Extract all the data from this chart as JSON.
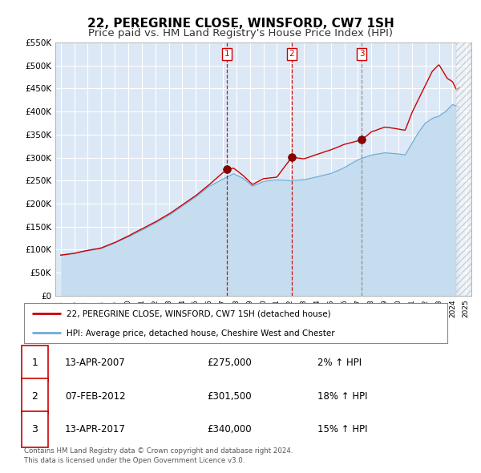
{
  "title": "22, PEREGRINE CLOSE, WINSFORD, CW7 1SH",
  "subtitle": "Price paid vs. HM Land Registry's House Price Index (HPI)",
  "ylim": [
    0,
    550000
  ],
  "yticks": [
    0,
    50000,
    100000,
    150000,
    200000,
    250000,
    300000,
    350000,
    400000,
    450000,
    500000,
    550000
  ],
  "ytick_labels": [
    "£0",
    "£50K",
    "£100K",
    "£150K",
    "£200K",
    "£250K",
    "£300K",
    "£350K",
    "£400K",
    "£450K",
    "£500K",
    "£550K"
  ],
  "xlim_start": 1994.6,
  "xlim_end": 2025.4,
  "bg_color": "#dce8f5",
  "grid_color": "#ffffff",
  "sale_color": "#cc0000",
  "hpi_color": "#6baed6",
  "hpi_fill_color": "#c6dcef",
  "marker_color": "#8b0000",
  "transactions": [
    {
      "label": "1",
      "date_str": "13-APR-2007",
      "date_x": 2007.28,
      "price": 275000,
      "pct": "2%",
      "arrow": "↑",
      "vline_color": "#cc0000",
      "vline_style": "--"
    },
    {
      "label": "2",
      "date_str": "07-FEB-2012",
      "date_x": 2012.1,
      "price": 301500,
      "pct": "18%",
      "arrow": "↑",
      "vline_color": "#cc0000",
      "vline_style": "--"
    },
    {
      "label": "3",
      "date_str": "13-APR-2017",
      "date_x": 2017.28,
      "price": 340000,
      "pct": "15%",
      "arrow": "↑",
      "vline_color": "#888888",
      "vline_style": "--"
    }
  ],
  "legend_sale_label": "22, PEREGRINE CLOSE, WINSFORD, CW7 1SH (detached house)",
  "legend_hpi_label": "HPI: Average price, detached house, Cheshire West and Chester",
  "footer1": "Contains HM Land Registry data © Crown copyright and database right 2024.",
  "footer2": "This data is licensed under the Open Government Licence v3.0.",
  "title_fontsize": 11,
  "subtitle_fontsize": 9.5
}
